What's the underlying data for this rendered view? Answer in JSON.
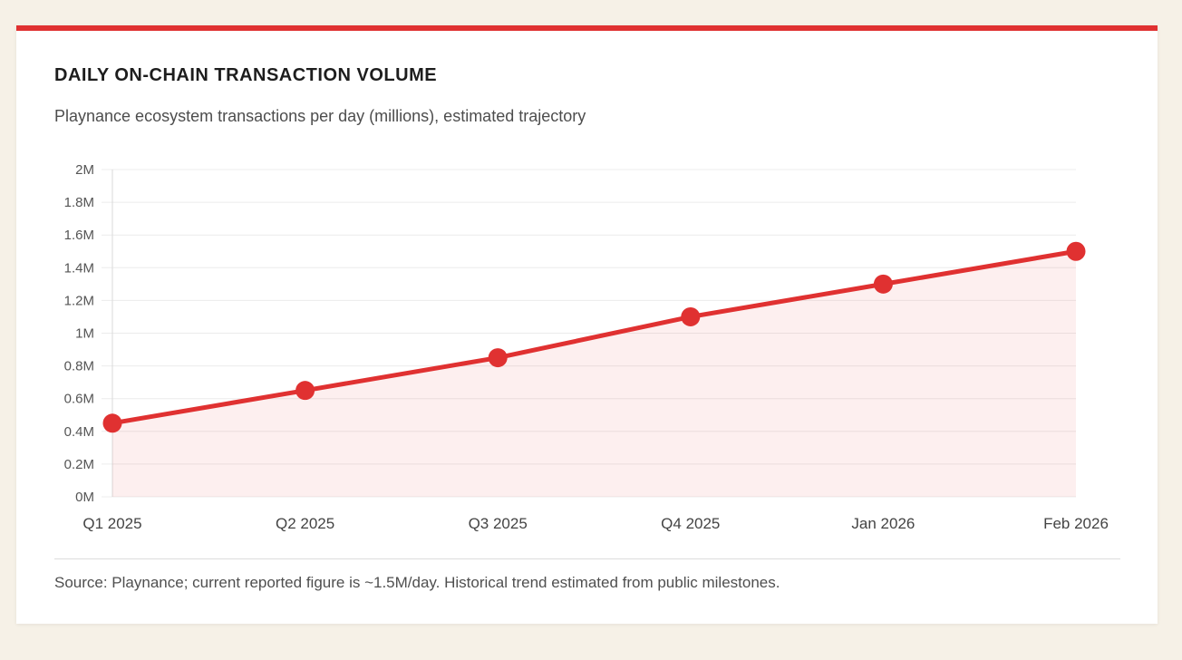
{
  "page": {
    "background_color": "#f6f1e7"
  },
  "card": {
    "background_color": "#ffffff",
    "accent_color": "#e03131"
  },
  "header": {
    "title": "DAILY ON-CHAIN TRANSACTION VOLUME",
    "subtitle": "Playnance ecosystem transactions per day (millions), estimated trajectory"
  },
  "chart_data": {
    "type": "area",
    "categories": [
      "Q1 2025",
      "Q2 2025",
      "Q3 2025",
      "Q4 2025",
      "Jan 2026",
      "Feb 2026"
    ],
    "values": [
      0.45,
      0.65,
      0.85,
      1.1,
      1.3,
      1.5
    ],
    "unit": "M",
    "title": "DAILY ON-CHAIN TRANSACTION VOLUME",
    "xlabel": "",
    "ylabel": "",
    "ylim": [
      0,
      2
    ],
    "ytick_step": 0.2,
    "ytick_labels": [
      "0M",
      "0.2M",
      "0.4M",
      "0.6M",
      "0.8M",
      "1M",
      "1.2M",
      "1.4M",
      "1.6M",
      "1.8M",
      "2M"
    ],
    "grid": true,
    "legend": "none",
    "line_color": "#e03131",
    "fill_color": "rgba(224,49,49,0.08)",
    "gridline_color": "#ececec",
    "axis_line_color": "#d9d9d9",
    "tick_label_color": "#555555",
    "x_label_color": "#444444",
    "marker": "circle"
  },
  "footer": {
    "source": "Source: Playnance; current reported figure is ~1.5M/day. Historical trend estimated from public milestones."
  }
}
